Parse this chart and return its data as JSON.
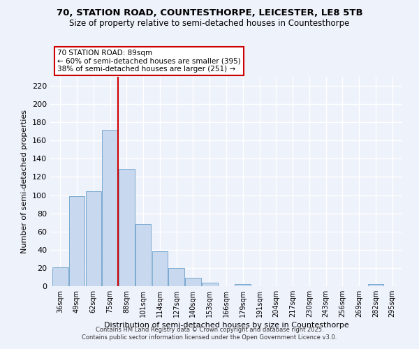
{
  "title1": "70, STATION ROAD, COUNTESTHORPE, LEICESTER, LE8 5TB",
  "title2": "Size of property relative to semi-detached houses in Countesthorpe",
  "bar_labels": [
    "36sqm",
    "49sqm",
    "62sqm",
    "75sqm",
    "88sqm",
    "101sqm",
    "114sqm",
    "127sqm",
    "140sqm",
    "153sqm",
    "166sqm",
    "179sqm",
    "191sqm",
    "204sqm",
    "217sqm",
    "230sqm",
    "243sqm",
    "256sqm",
    "269sqm",
    "282sqm",
    "295sqm"
  ],
  "bar_values": [
    21,
    99,
    104,
    172,
    129,
    68,
    38,
    20,
    9,
    4,
    0,
    2,
    0,
    0,
    0,
    0,
    0,
    0,
    0,
    2,
    0
  ],
  "bar_color": "#c8d8ee",
  "bar_edge_color": "#7aaad0",
  "property_line_color": "#cc0000",
  "annotation_title": "70 STATION ROAD: 89sqm",
  "annotation_line1": "← 60% of semi-detached houses are smaller (395)",
  "annotation_line2": "38% of semi-detached houses are larger (251) →",
  "annotation_box_color": "#ffffff",
  "annotation_box_edge": "#cc0000",
  "xlabel": "Distribution of semi-detached houses by size in Countesthorpe",
  "ylabel": "Number of semi-detached properties",
  "ylim": [
    0,
    230
  ],
  "yticks": [
    0,
    20,
    40,
    60,
    80,
    100,
    120,
    140,
    160,
    180,
    200,
    220
  ],
  "footer1": "Contains HM Land Registry data © Crown copyright and database right 2025.",
  "footer2": "Contains public sector information licensed under the Open Government Licence v3.0.",
  "background_color": "#eef2fb",
  "grid_color": "#ffffff"
}
